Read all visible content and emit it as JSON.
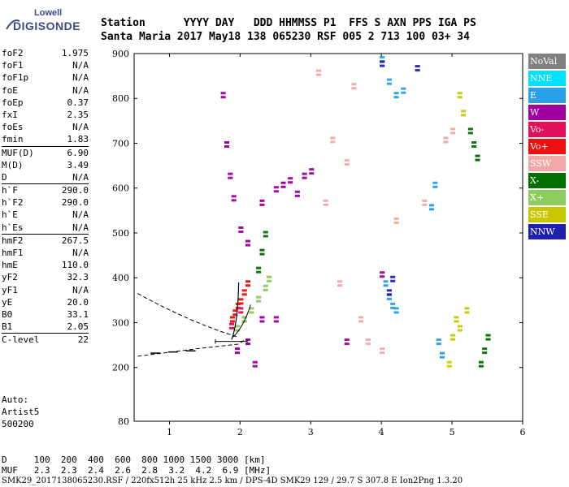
{
  "logo": {
    "line1": "Lowell",
    "line2": "DIGISONDE"
  },
  "header": {
    "labels": "Station      YYYY DAY   DDD HHMMSS P1  FFS S AXN PPS IGA PS",
    "values": "Santa Maria 2017 May18 138 065230 RSF 005 2 713 100 03+ 34"
  },
  "params": {
    "group1": [
      {
        "name": "foF2",
        "value": "1.975"
      },
      {
        "name": "foF1",
        "value": "N/A"
      },
      {
        "name": "foF1p",
        "value": "N/A"
      },
      {
        "name": "foE",
        "value": "N/A"
      },
      {
        "name": "foEp",
        "value": "0.37"
      },
      {
        "name": "fxI",
        "value": "2.35"
      },
      {
        "name": "foEs",
        "value": "N/A"
      },
      {
        "name": "fmin",
        "value": "1.83"
      }
    ],
    "group2": [
      {
        "name": "MUF(D)",
        "value": "6.90"
      },
      {
        "name": "M(D)",
        "value": "3.49"
      },
      {
        "name": "D",
        "value": "N/A"
      }
    ],
    "group3": [
      {
        "name": "h`F",
        "value": "290.0"
      },
      {
        "name": "h`F2",
        "value": "290.0"
      },
      {
        "name": "h`E",
        "value": "N/A"
      },
      {
        "name": "h`Es",
        "value": "N/A"
      }
    ],
    "group4": [
      {
        "name": "hmF2",
        "value": "267.5"
      },
      {
        "name": "hmF1",
        "value": "N/A"
      },
      {
        "name": "hmE",
        "value": "110.0"
      },
      {
        "name": "yF2",
        "value": "32.3"
      },
      {
        "name": "yF1",
        "value": "N/A"
      },
      {
        "name": "yE",
        "value": "20.0"
      },
      {
        "name": "B0",
        "value": "33.1"
      },
      {
        "name": "B1",
        "value": "2.05"
      }
    ],
    "group5": [
      {
        "name": "C-level",
        "value": "22"
      }
    ]
  },
  "auto": {
    "line1": "Auto:",
    "line2": "Artist5",
    "line3": "500200"
  },
  "footer": {
    "d_line": "D     100  200  400  600  800 1000 1500 3000 [km]",
    "muf_line": "MUF   2.3  2.3  2.4  2.6  2.8  3.2  4.2  6.9 [MHz]",
    "file_line": "SMK29_2017138065230.RSF / 220fx512h 25 kHz 2.5 km / DPS-4D SMK29 129 / 29.7 S 307.8 E Ion2Png 1.3.20"
  },
  "legend": [
    {
      "label": "NoVal",
      "color": "#808080"
    },
    {
      "label": "NNE",
      "color": "#00e0ff"
    },
    {
      "label": "E",
      "color": "#2aa0e8"
    },
    {
      "label": "W",
      "color": "#a000a0"
    },
    {
      "label": "Vo-",
      "color": "#e0105a"
    },
    {
      "label": "Vo+",
      "color": "#ee1010"
    },
    {
      "label": "SSW",
      "color": "#f2a8a8"
    },
    {
      "label": "X-",
      "color": "#007000"
    },
    {
      "label": "X+",
      "color": "#8ccc5c"
    },
    {
      "label": "SSE",
      "color": "#c8c800"
    },
    {
      "label": "NNW",
      "color": "#2020b0"
    }
  ],
  "chart_data": {
    "type": "scatter",
    "xlim": [
      0.5,
      6.0
    ],
    "ylim": [
      80,
      900
    ],
    "x_ticks": [
      1,
      2,
      3,
      4,
      5,
      6
    ],
    "y_ticks": [
      80,
      200,
      300,
      400,
      500,
      600,
      700,
      800,
      900
    ],
    "series": [
      {
        "legend": "W",
        "color": "#a000a0",
        "points": [
          [
            1.75,
            800
          ],
          [
            1.8,
            690
          ],
          [
            1.85,
            620
          ],
          [
            1.9,
            570
          ],
          [
            2.0,
            500
          ],
          [
            2.1,
            470
          ],
          [
            2.3,
            560
          ],
          [
            2.5,
            590
          ],
          [
            2.6,
            600
          ],
          [
            2.7,
            610
          ],
          [
            2.8,
            580
          ],
          [
            2.9,
            620
          ],
          [
            3.0,
            630
          ],
          [
            2.05,
            300
          ],
          [
            2.1,
            250
          ],
          [
            2.2,
            200
          ],
          [
            1.95,
            230
          ],
          [
            4.0,
            400
          ],
          [
            3.5,
            250
          ],
          [
            2.3,
            300
          ],
          [
            2.5,
            300
          ]
        ]
      },
      {
        "legend": "Vo+",
        "color": "#ee1010",
        "points": [
          [
            1.88,
            300
          ],
          [
            1.92,
            315
          ],
          [
            1.96,
            330
          ],
          [
            2.0,
            340
          ],
          [
            2.05,
            360
          ],
          [
            2.1,
            380
          ]
        ]
      },
      {
        "legend": "X+",
        "color": "#8ccc5c",
        "points": [
          [
            1.95,
            280
          ],
          [
            2.05,
            300
          ],
          [
            2.15,
            320
          ],
          [
            2.25,
            345
          ],
          [
            2.35,
            370
          ],
          [
            2.4,
            390
          ]
        ]
      },
      {
        "legend": "X-",
        "color": "#007000",
        "points": [
          [
            2.25,
            410
          ],
          [
            2.3,
            450
          ],
          [
            2.35,
            490
          ],
          [
            5.25,
            720
          ],
          [
            5.3,
            690
          ],
          [
            5.35,
            660
          ],
          [
            5.4,
            200
          ],
          [
            5.45,
            230
          ],
          [
            5.5,
            260
          ]
        ]
      },
      {
        "legend": "SSW",
        "color": "#f2a8a8",
        "points": [
          [
            3.1,
            850
          ],
          [
            3.3,
            700
          ],
          [
            3.5,
            650
          ],
          [
            3.6,
            820
          ],
          [
            3.7,
            300
          ],
          [
            3.8,
            250
          ],
          [
            4.2,
            520
          ],
          [
            4.6,
            560
          ],
          [
            4.9,
            700
          ],
          [
            5.0,
            720
          ],
          [
            3.4,
            380
          ],
          [
            3.2,
            560
          ],
          [
            4.0,
            230
          ]
        ]
      },
      {
        "legend": "E",
        "color": "#2aa0e8",
        "points": [
          [
            4.0,
            880
          ],
          [
            4.1,
            830
          ],
          [
            4.2,
            800
          ],
          [
            4.3,
            810
          ],
          [
            4.05,
            380
          ],
          [
            4.1,
            350
          ],
          [
            4.15,
            330
          ],
          [
            4.2,
            320
          ],
          [
            4.7,
            550
          ],
          [
            4.75,
            600
          ],
          [
            4.8,
            250
          ],
          [
            4.85,
            220
          ]
        ]
      },
      {
        "legend": "SSE",
        "color": "#c8c800",
        "points": [
          [
            5.1,
            800
          ],
          [
            5.15,
            760
          ],
          [
            5.0,
            260
          ],
          [
            5.05,
            300
          ],
          [
            5.1,
            280
          ],
          [
            5.2,
            320
          ],
          [
            4.95,
            200
          ]
        ]
      },
      {
        "legend": "NNW",
        "color": "#2020b0",
        "points": [
          [
            4.0,
            870
          ],
          [
            4.5,
            860
          ],
          [
            4.1,
            360
          ],
          [
            4.15,
            390
          ]
        ]
      },
      {
        "legend": "Vo-",
        "color": "#e0105a",
        "points": [
          [
            1.87,
            285
          ],
          [
            2.0,
            320
          ]
        ]
      }
    ],
    "profile_line": [
      [
        1.975,
        267.5
      ]
    ]
  }
}
